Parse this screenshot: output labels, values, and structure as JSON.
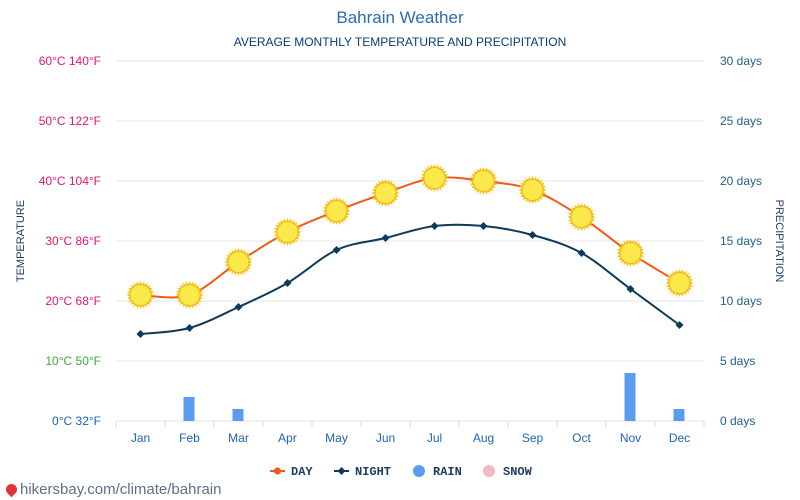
{
  "chart_data": {
    "type": "line",
    "title": "Bahrain Weather",
    "subtitle": "AVERAGE MONTHLY TEMPERATURE AND PRECIPITATION",
    "categories": [
      "Jan",
      "Feb",
      "Mar",
      "Apr",
      "May",
      "Jun",
      "Jul",
      "Aug",
      "Sep",
      "Oct",
      "Nov",
      "Dec"
    ],
    "series": [
      {
        "name": "DAY",
        "axis": "temperature",
        "unit": "°C",
        "color": "#f05a1a",
        "marker": "sun-icon",
        "values": [
          21,
          21,
          26.5,
          31.5,
          35,
          38,
          40.5,
          40,
          38.5,
          34,
          28,
          23
        ]
      },
      {
        "name": "NIGHT",
        "axis": "temperature",
        "unit": "°C",
        "color": "#0e3a5c",
        "marker": "diamond",
        "values": [
          14.5,
          15.5,
          19,
          23,
          28.5,
          30.5,
          32.5,
          32.5,
          31,
          28,
          22,
          16
        ]
      },
      {
        "name": "RAIN",
        "axis": "precipitation",
        "unit": "days",
        "color": "#5b9cf0",
        "type": "bar",
        "values": [
          0,
          2,
          1,
          0,
          0,
          0,
          0,
          0,
          0,
          0,
          4,
          1
        ]
      },
      {
        "name": "SNOW",
        "axis": "precipitation",
        "unit": "days",
        "color": "#f4b8c4",
        "type": "bar",
        "values": [
          0,
          0,
          0,
          0,
          0,
          0,
          0,
          0,
          0,
          0,
          0,
          0
        ]
      }
    ],
    "y_left": {
      "label": "TEMPERATURE",
      "range": [
        0,
        60
      ],
      "ticks": [
        {
          "value": 60,
          "label": "60°C 140°F",
          "color": "#e8156b"
        },
        {
          "value": 50,
          "label": "50°C 122°F",
          "color": "#e8156b"
        },
        {
          "value": 40,
          "label": "40°C 104°F",
          "color": "#e8156b"
        },
        {
          "value": 30,
          "label": "30°C 86°F",
          "color": "#e8156b"
        },
        {
          "value": 20,
          "label": "20°C 68°F",
          "color": "#e8156b"
        },
        {
          "value": 10,
          "label": "10°C 50°F",
          "color": "#3caa3c"
        },
        {
          "value": 0,
          "label": "0°C 32°F",
          "color": "#1d63b8"
        }
      ]
    },
    "y_right": {
      "label": "PRECIPITATION",
      "range": [
        0,
        30
      ],
      "color": "#1f5f8b",
      "ticks": [
        {
          "value": 30,
          "label": "30 days"
        },
        {
          "value": 25,
          "label": "25 days"
        },
        {
          "value": 20,
          "label": "20 days"
        },
        {
          "value": 15,
          "label": "15 days"
        },
        {
          "value": 10,
          "label": "10 days"
        },
        {
          "value": 5,
          "label": "5 days"
        },
        {
          "value": 0,
          "label": "0 days"
        }
      ]
    },
    "x_tick_color": "#1d63b8",
    "grid": true,
    "legend_position": "bottom-center"
  },
  "footer": {
    "text": "hikersbay.com/climate/bahrain"
  }
}
